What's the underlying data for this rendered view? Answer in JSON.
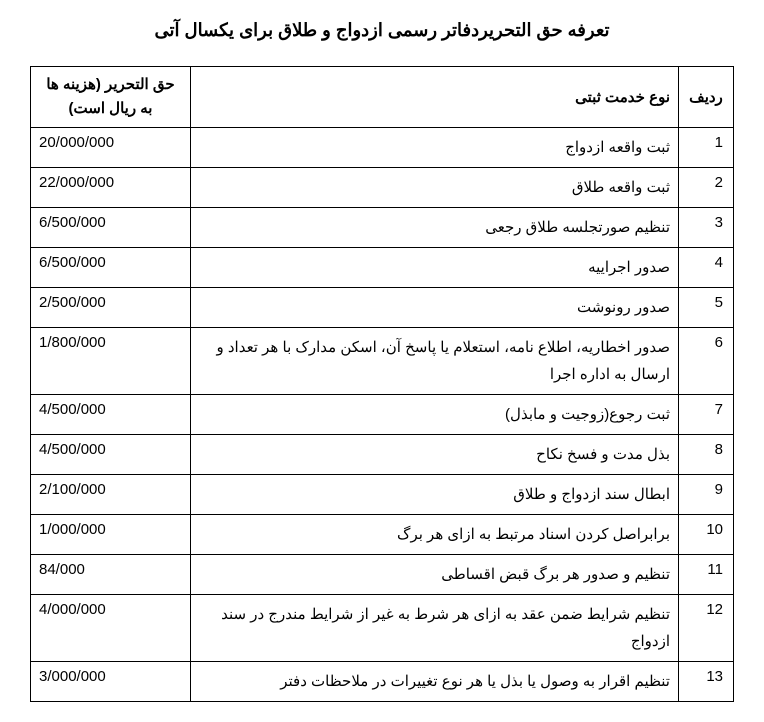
{
  "title": "تعرفه حق التحریردفاتر رسمی ازدواج و طلاق برای یکسال آتی",
  "headers": {
    "row": "ردیف",
    "service": "نوع خدمت ثبتی",
    "fee": "حق التحریر (هزینه ها به ریال است)"
  },
  "rows": [
    {
      "n": "1",
      "service": "ثبت واقعه ازدواج",
      "fee": "20/000/000"
    },
    {
      "n": "2",
      "service": "ثبت واقعه طلاق",
      "fee": "22/000/000"
    },
    {
      "n": "3",
      "service": "تنظیم صورتجلسه طلاق رجعی",
      "fee": "6/500/000"
    },
    {
      "n": "4",
      "service": "صدور اجراییه",
      "fee": "6/500/000"
    },
    {
      "n": "5",
      "service": "صدور رونوشت",
      "fee": "2/500/000"
    },
    {
      "n": "6",
      "service": "صدور اخطاریه، اطلاع نامه، استعلام یا پاسخ آن، اسکن مدارک با هر تعداد و ارسال به اداره اجرا",
      "fee": "1/800/000"
    },
    {
      "n": "7",
      "service": "ثبت رجوع(زوجیت و مابذل)",
      "fee": "4/500/000"
    },
    {
      "n": "8",
      "service": "بذل مدت و فسخ نکاح",
      "fee": "4/500/000"
    },
    {
      "n": "9",
      "service": "ابطال سند ازدواج و طلاق",
      "fee": "2/100/000"
    },
    {
      "n": "10",
      "service": "برابراصل کردن اسناد مرتبط به ازای هر برگ",
      "fee": "1/000/000"
    },
    {
      "n": "11",
      "service": "تنظیم و صدور هر برگ قبض اقساطی",
      "fee": "84/000"
    },
    {
      "n": "12",
      "service": "تنظیم شرایط ضمن عقد به ازای هر شرط به غیر از شرایط مندرج در سند ازدواج",
      "fee": "4/000/000"
    },
    {
      "n": "13",
      "service": "تنظیم اقرار به وصول یا بذل یا هر نوع تغییرات در ملاحظات دفتر",
      "fee": "3/000/000"
    }
  ]
}
